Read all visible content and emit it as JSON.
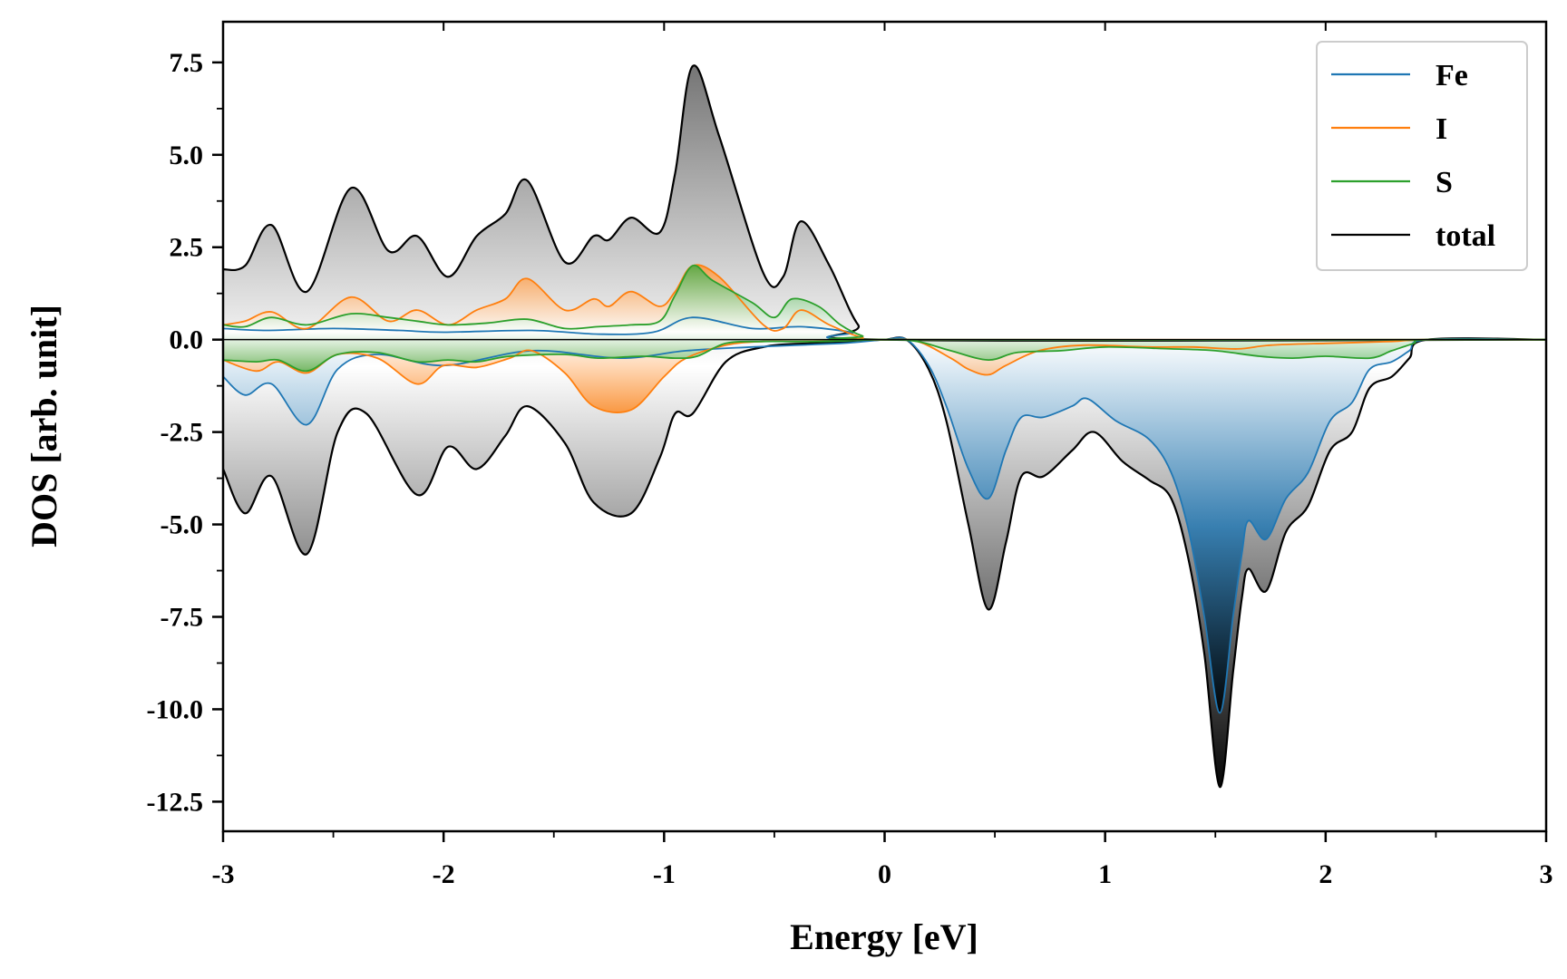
{
  "chart_data": {
    "type": "area",
    "xlabel": "Energy [eV]",
    "ylabel": "DOS [arb. unit]",
    "xlim": [
      -3,
      3
    ],
    "ylim": [
      -13.3,
      8.6
    ],
    "x_ticks": [
      -3,
      -2,
      -1,
      0,
      1,
      2,
      3
    ],
    "x_tick_labels": [
      "-3",
      "-2",
      "-1",
      "0",
      "1",
      "2",
      "3"
    ],
    "y_ticks": [
      7.5,
      5.0,
      2.5,
      0.0,
      -2.5,
      -5.0,
      -7.5,
      -10.0,
      -12.5
    ],
    "y_tick_labels": [
      "7.5",
      "5.0",
      "2.5",
      "0.0",
      "-2.5",
      "-5.0",
      "-7.5",
      "-10.0",
      "-12.5"
    ],
    "grid": false,
    "legend_position": "top-right",
    "series": [
      {
        "name": "total",
        "color": "#000000",
        "spin_up": [
          [
            -3,
            1.9
          ],
          [
            -2.9,
            2.0
          ],
          [
            -2.78,
            3.1
          ],
          [
            -2.62,
            1.3
          ],
          [
            -2.42,
            4.1
          ],
          [
            -2.25,
            2.4
          ],
          [
            -2.12,
            2.8
          ],
          [
            -1.98,
            1.7
          ],
          [
            -1.85,
            2.8
          ],
          [
            -1.72,
            3.4
          ],
          [
            -1.62,
            4.3
          ],
          [
            -1.45,
            2.1
          ],
          [
            -1.32,
            2.8
          ],
          [
            -1.25,
            2.7
          ],
          [
            -1.15,
            3.3
          ],
          [
            -1.02,
            2.9
          ],
          [
            -0.95,
            4.5
          ],
          [
            -0.87,
            7.4
          ],
          [
            -0.75,
            5.5
          ],
          [
            -0.55,
            1.8
          ],
          [
            -0.46,
            1.7
          ],
          [
            -0.38,
            3.2
          ],
          [
            -0.25,
            2.0
          ],
          [
            -0.12,
            0.4
          ],
          [
            0,
            0.0
          ],
          [
            3,
            0.0
          ]
        ],
        "spin_down": [
          [
            -3,
            -3.5
          ],
          [
            -2.9,
            -4.7
          ],
          [
            -2.78,
            -3.7
          ],
          [
            -2.62,
            -5.8
          ],
          [
            -2.48,
            -2.5
          ],
          [
            -2.35,
            -2.0
          ],
          [
            -2.12,
            -4.2
          ],
          [
            -1.98,
            -2.9
          ],
          [
            -1.85,
            -3.5
          ],
          [
            -1.72,
            -2.6
          ],
          [
            -1.62,
            -1.8
          ],
          [
            -1.45,
            -2.8
          ],
          [
            -1.32,
            -4.4
          ],
          [
            -1.15,
            -4.7
          ],
          [
            -1.02,
            -3.2
          ],
          [
            -0.95,
            -2.0
          ],
          [
            -0.87,
            -2.0
          ],
          [
            -0.72,
            -0.6
          ],
          [
            -0.55,
            -0.2
          ],
          [
            -0.35,
            -0.1
          ],
          [
            -0.15,
            -0.05
          ],
          [
            0,
            0.0
          ],
          [
            0.1,
            0.0
          ],
          [
            0.2,
            -0.8
          ],
          [
            0.28,
            -2.2
          ],
          [
            0.38,
            -5.0
          ],
          [
            0.47,
            -7.3
          ],
          [
            0.55,
            -5.5
          ],
          [
            0.62,
            -3.7
          ],
          [
            0.72,
            -3.7
          ],
          [
            0.85,
            -3.0
          ],
          [
            0.95,
            -2.5
          ],
          [
            1.08,
            -3.3
          ],
          [
            1.2,
            -3.8
          ],
          [
            1.3,
            -4.3
          ],
          [
            1.38,
            -6.0
          ],
          [
            1.45,
            -8.5
          ],
          [
            1.52,
            -12.1
          ],
          [
            1.58,
            -9.0
          ],
          [
            1.62,
            -7.0
          ],
          [
            1.65,
            -6.2
          ],
          [
            1.73,
            -6.8
          ],
          [
            1.82,
            -5.2
          ],
          [
            1.92,
            -4.5
          ],
          [
            2.02,
            -3.0
          ],
          [
            2.12,
            -2.5
          ],
          [
            2.2,
            -1.3
          ],
          [
            2.3,
            -1.0
          ],
          [
            2.38,
            -0.5
          ],
          [
            2.46,
            0.0
          ],
          [
            3,
            0.0
          ]
        ]
      },
      {
        "name": "Fe",
        "color": "#1f77b4",
        "spin_up": [
          [
            -3,
            0.3
          ],
          [
            -2.8,
            0.25
          ],
          [
            -2.5,
            0.3
          ],
          [
            -2.2,
            0.25
          ],
          [
            -2.0,
            0.2
          ],
          [
            -1.6,
            0.25
          ],
          [
            -1.3,
            0.15
          ],
          [
            -1.05,
            0.2
          ],
          [
            -0.87,
            0.6
          ],
          [
            -0.6,
            0.3
          ],
          [
            -0.38,
            0.35
          ],
          [
            -0.15,
            0.2
          ],
          [
            0,
            0.0
          ],
          [
            3,
            0.0
          ]
        ],
        "spin_down": [
          [
            -3,
            -1.0
          ],
          [
            -2.9,
            -1.5
          ],
          [
            -2.78,
            -1.2
          ],
          [
            -2.62,
            -2.3
          ],
          [
            -2.48,
            -0.8
          ],
          [
            -2.3,
            -0.4
          ],
          [
            -2.0,
            -0.7
          ],
          [
            -1.6,
            -0.3
          ],
          [
            -1.2,
            -0.5
          ],
          [
            -0.9,
            -0.3
          ],
          [
            -0.6,
            -0.2
          ],
          [
            -0.2,
            -0.1
          ],
          [
            0,
            0.0
          ],
          [
            0.1,
            0.0
          ],
          [
            0.2,
            -0.7
          ],
          [
            0.28,
            -1.8
          ],
          [
            0.38,
            -3.5
          ],
          [
            0.47,
            -4.3
          ],
          [
            0.55,
            -3.0
          ],
          [
            0.62,
            -2.1
          ],
          [
            0.72,
            -2.1
          ],
          [
            0.85,
            -1.8
          ],
          [
            0.92,
            -1.6
          ],
          [
            1.05,
            -2.2
          ],
          [
            1.2,
            -2.7
          ],
          [
            1.3,
            -3.6
          ],
          [
            1.38,
            -5.2
          ],
          [
            1.45,
            -7.5
          ],
          [
            1.52,
            -10.1
          ],
          [
            1.58,
            -7.5
          ],
          [
            1.62,
            -5.8
          ],
          [
            1.65,
            -4.9
          ],
          [
            1.73,
            -5.4
          ],
          [
            1.82,
            -4.3
          ],
          [
            1.92,
            -3.6
          ],
          [
            2.02,
            -2.2
          ],
          [
            2.12,
            -1.7
          ],
          [
            2.2,
            -0.8
          ],
          [
            2.3,
            -0.6
          ],
          [
            2.38,
            -0.3
          ],
          [
            2.46,
            0.0
          ],
          [
            3,
            0.0
          ]
        ]
      },
      {
        "name": "I",
        "color": "#ff7f0e",
        "spin_up": [
          [
            -3,
            0.4
          ],
          [
            -2.9,
            0.5
          ],
          [
            -2.78,
            0.75
          ],
          [
            -2.62,
            0.3
          ],
          [
            -2.42,
            1.15
          ],
          [
            -2.25,
            0.5
          ],
          [
            -2.12,
            0.8
          ],
          [
            -1.98,
            0.4
          ],
          [
            -1.85,
            0.8
          ],
          [
            -1.72,
            1.1
          ],
          [
            -1.62,
            1.65
          ],
          [
            -1.45,
            0.8
          ],
          [
            -1.32,
            1.1
          ],
          [
            -1.25,
            0.9
          ],
          [
            -1.15,
            1.3
          ],
          [
            -1.02,
            0.9
          ],
          [
            -0.95,
            1.3
          ],
          [
            -0.87,
            2.0
          ],
          [
            -0.75,
            1.7
          ],
          [
            -0.55,
            0.4
          ],
          [
            -0.46,
            0.3
          ],
          [
            -0.38,
            0.8
          ],
          [
            -0.25,
            0.4
          ],
          [
            -0.1,
            0.05
          ],
          [
            0,
            0.0
          ],
          [
            3,
            0.0
          ]
        ],
        "spin_down": [
          [
            -3,
            -0.55
          ],
          [
            -2.85,
            -0.85
          ],
          [
            -2.75,
            -0.6
          ],
          [
            -2.62,
            -0.9
          ],
          [
            -2.48,
            -0.4
          ],
          [
            -2.3,
            -0.5
          ],
          [
            -2.12,
            -1.2
          ],
          [
            -2.0,
            -0.7
          ],
          [
            -1.85,
            -0.75
          ],
          [
            -1.7,
            -0.5
          ],
          [
            -1.6,
            -0.3
          ],
          [
            -1.45,
            -0.9
          ],
          [
            -1.32,
            -1.8
          ],
          [
            -1.15,
            -1.9
          ],
          [
            -1.0,
            -1.0
          ],
          [
            -0.9,
            -0.5
          ],
          [
            -0.72,
            -0.15
          ],
          [
            -0.55,
            -0.05
          ],
          [
            -0.35,
            -0.05
          ],
          [
            0,
            0.0
          ],
          [
            0.15,
            -0.05
          ],
          [
            0.3,
            -0.5
          ],
          [
            0.38,
            -0.8
          ],
          [
            0.47,
            -0.95
          ],
          [
            0.55,
            -0.7
          ],
          [
            0.7,
            -0.3
          ],
          [
            0.9,
            -0.15
          ],
          [
            1.2,
            -0.2
          ],
          [
            1.4,
            -0.2
          ],
          [
            1.6,
            -0.25
          ],
          [
            1.75,
            -0.15
          ],
          [
            2.0,
            -0.1
          ],
          [
            2.3,
            -0.05
          ],
          [
            2.46,
            0.0
          ],
          [
            3,
            0.0
          ]
        ]
      },
      {
        "name": "S",
        "color": "#2ca02c",
        "spin_up": [
          [
            -3,
            0.4
          ],
          [
            -2.9,
            0.35
          ],
          [
            -2.78,
            0.6
          ],
          [
            -2.62,
            0.4
          ],
          [
            -2.42,
            0.7
          ],
          [
            -2.25,
            0.6
          ],
          [
            -2.12,
            0.5
          ],
          [
            -1.98,
            0.4
          ],
          [
            -1.8,
            0.45
          ],
          [
            -1.62,
            0.55
          ],
          [
            -1.45,
            0.3
          ],
          [
            -1.3,
            0.35
          ],
          [
            -1.15,
            0.4
          ],
          [
            -1.02,
            0.5
          ],
          [
            -0.95,
            1.2
          ],
          [
            -0.87,
            2.0
          ],
          [
            -0.78,
            1.6
          ],
          [
            -0.6,
            1.0
          ],
          [
            -0.5,
            0.6
          ],
          [
            -0.42,
            1.1
          ],
          [
            -0.3,
            0.9
          ],
          [
            -0.2,
            0.4
          ],
          [
            -0.1,
            0.1
          ],
          [
            0,
            0.0
          ],
          [
            3,
            0.0
          ]
        ],
        "spin_down": [
          [
            -3,
            -0.55
          ],
          [
            -2.85,
            -0.6
          ],
          [
            -2.75,
            -0.55
          ],
          [
            -2.62,
            -0.85
          ],
          [
            -2.48,
            -0.4
          ],
          [
            -2.3,
            -0.35
          ],
          [
            -2.12,
            -0.6
          ],
          [
            -1.98,
            -0.55
          ],
          [
            -1.85,
            -0.6
          ],
          [
            -1.7,
            -0.45
          ],
          [
            -1.45,
            -0.4
          ],
          [
            -1.3,
            -0.5
          ],
          [
            -1.1,
            -0.45
          ],
          [
            -0.95,
            -0.5
          ],
          [
            -0.85,
            -0.45
          ],
          [
            -0.72,
            -0.1
          ],
          [
            -0.55,
            -0.05
          ],
          [
            -0.3,
            -0.05
          ],
          [
            0,
            0.0
          ],
          [
            0.15,
            -0.05
          ],
          [
            0.3,
            -0.3
          ],
          [
            0.47,
            -0.55
          ],
          [
            0.6,
            -0.35
          ],
          [
            0.8,
            -0.3
          ],
          [
            1.0,
            -0.2
          ],
          [
            1.3,
            -0.25
          ],
          [
            1.5,
            -0.3
          ],
          [
            1.7,
            -0.45
          ],
          [
            1.85,
            -0.5
          ],
          [
            2.0,
            -0.45
          ],
          [
            2.2,
            -0.5
          ],
          [
            2.3,
            -0.3
          ],
          [
            2.4,
            -0.1
          ],
          [
            2.46,
            0.0
          ],
          [
            3,
            0.0
          ]
        ]
      }
    ],
    "legend_order": [
      "Fe",
      "I",
      "S",
      "total"
    ]
  }
}
